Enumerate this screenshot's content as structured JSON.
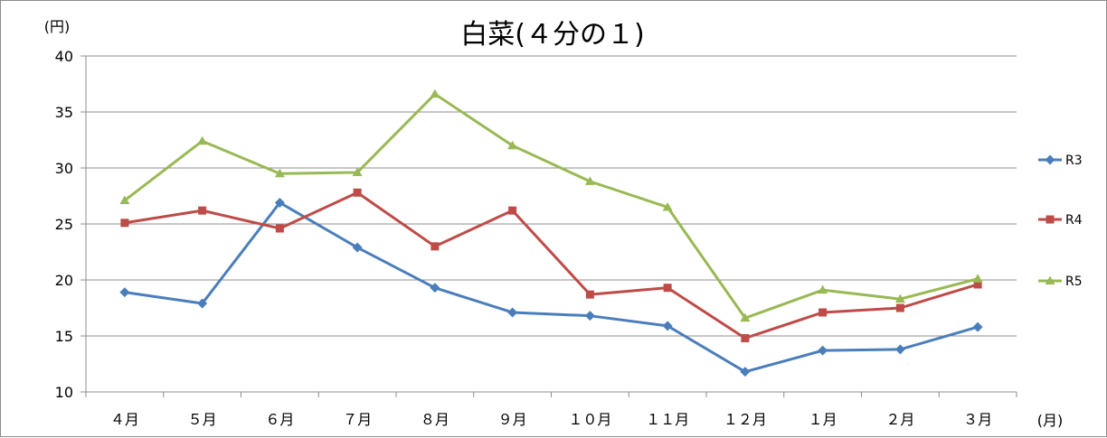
{
  "chart_data": {
    "type": "line",
    "title": "白菜(４分の１)",
    "ylabel": "(円)",
    "xlabel": "(月)",
    "ylim": [
      10,
      40
    ],
    "yticks": [
      10,
      15,
      20,
      25,
      30,
      35,
      40
    ],
    "grid": true,
    "legend_position": "right",
    "categories": [
      "４月",
      "５月",
      "６月",
      "７月",
      "８月",
      "９月",
      "１０月",
      "１１月",
      "１２月",
      "１月",
      "２月",
      "３月"
    ],
    "series": [
      {
        "name": "R3",
        "color": "#4A7EBB",
        "marker": "diamond",
        "values": [
          18.9,
          17.9,
          26.9,
          22.9,
          19.3,
          17.1,
          16.8,
          15.9,
          11.8,
          13.7,
          13.8,
          15.8
        ]
      },
      {
        "name": "R4",
        "color": "#BE4B48",
        "marker": "square",
        "values": [
          25.1,
          26.2,
          24.6,
          27.8,
          23.0,
          26.2,
          18.7,
          19.3,
          14.8,
          17.1,
          17.5,
          19.6
        ]
      },
      {
        "name": "R5",
        "color": "#98B954",
        "marker": "triangle",
        "values": [
          27.1,
          32.4,
          29.5,
          29.6,
          36.6,
          32.0,
          28.8,
          26.5,
          16.6,
          19.1,
          18.3,
          20.1
        ]
      }
    ]
  }
}
